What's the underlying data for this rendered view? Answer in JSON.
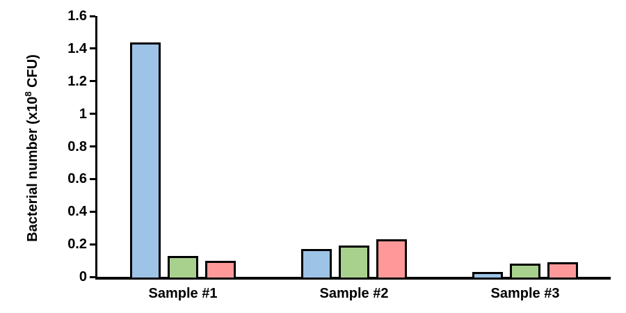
{
  "chart_data": {
    "type": "bar",
    "title": "",
    "categories": [
      "Sample #1",
      "Sample #2",
      "Sample #3"
    ],
    "series": [
      {
        "name": "blue-series",
        "color": "#9DC3E6",
        "values": [
          1.44,
          0.17,
          0.03
        ]
      },
      {
        "name": "green-series",
        "color": "#A9D18E",
        "values": [
          0.13,
          0.19,
          0.08
        ]
      },
      {
        "name": "red-series",
        "color": "#FF9999",
        "values": [
          0.1,
          0.23,
          0.09
        ]
      }
    ],
    "xlabel": "",
    "ylabel": "Bacterial number (x10⁸ CFU)",
    "ylabel_parts": {
      "pre": "Bacterial number (x10",
      "sup": "8",
      "post": " CFU)"
    },
    "ylim": [
      0,
      1.6
    ],
    "yticks": [
      "0",
      "0.2",
      "0.4",
      "0.6",
      "0.8",
      "1",
      "1.2",
      "1.4",
      "1.6"
    ],
    "grid": false,
    "legend": "none",
    "axis_color": "#000000",
    "bar_border_color": "#000000",
    "background": "#FFFFFF"
  }
}
